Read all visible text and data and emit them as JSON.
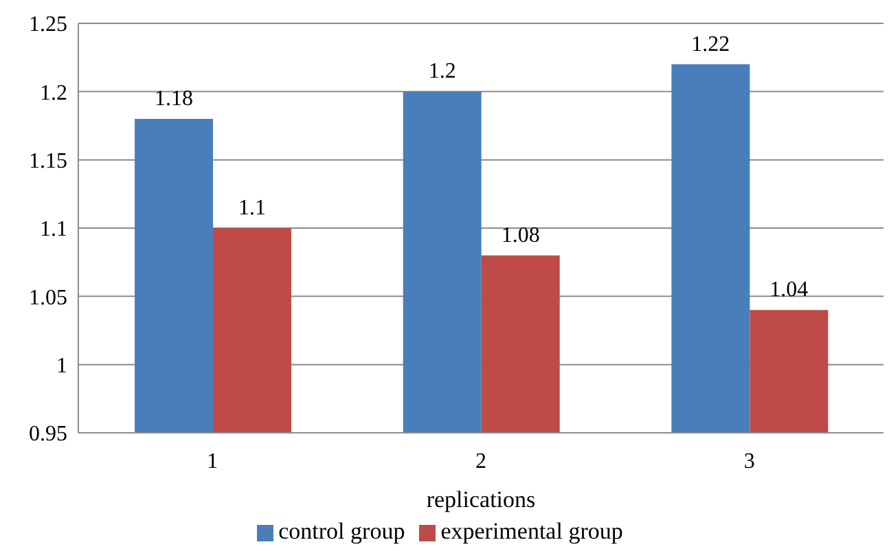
{
  "chart_data": {
    "type": "bar",
    "xlabel": "replications",
    "categories": [
      "1",
      "2",
      "3"
    ],
    "series": [
      {
        "name": "control group",
        "color": "#4a7ebb",
        "values": [
          1.18,
          1.2,
          1.22
        ]
      },
      {
        "name": "experimental group",
        "color": "#be4b48",
        "values": [
          1.1,
          1.08,
          1.04
        ]
      }
    ],
    "ylim": [
      0.95,
      1.25
    ],
    "yticks": [
      0.95,
      1,
      1.05,
      1.1,
      1.15,
      1.2,
      1.25
    ],
    "grid": "y",
    "legend": "bottom",
    "data_labels": true
  }
}
